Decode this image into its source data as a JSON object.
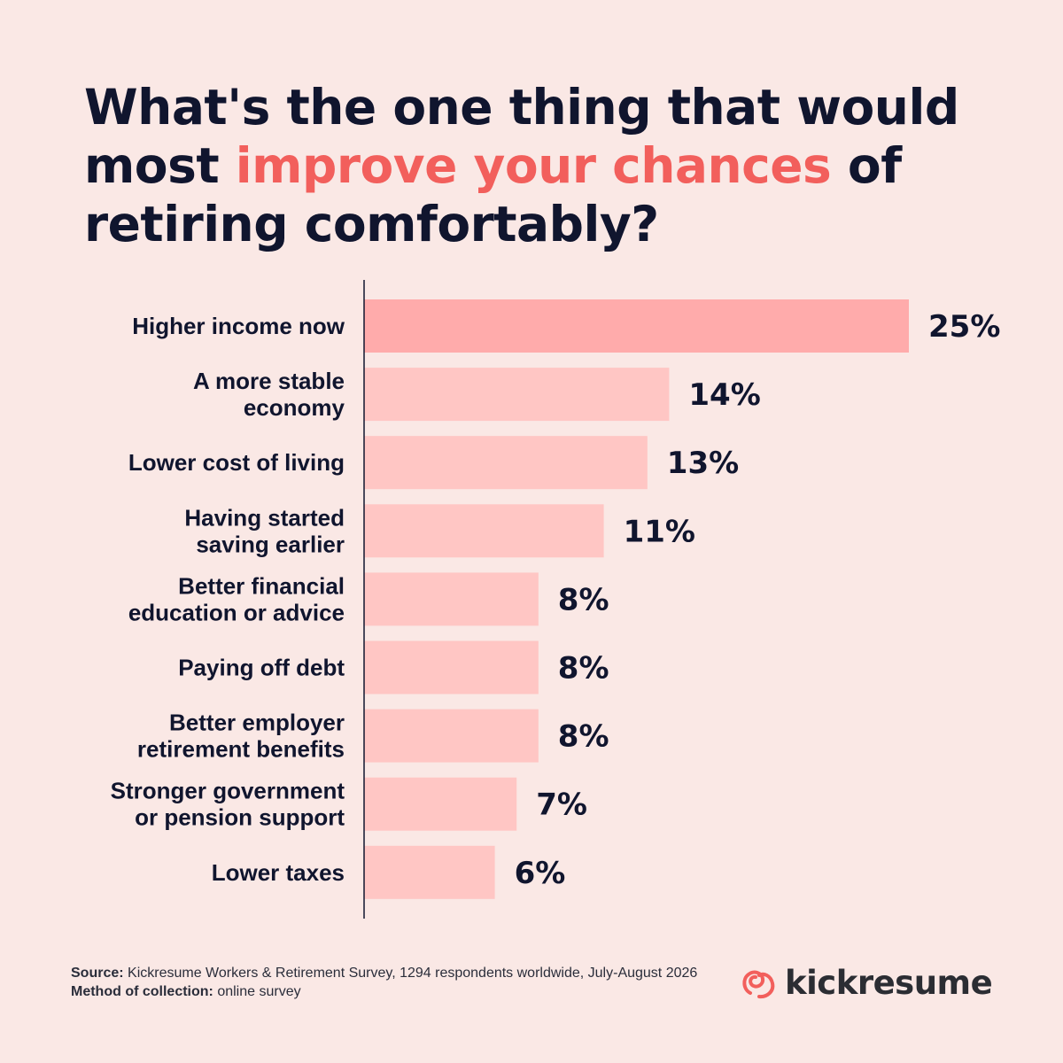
{
  "title": {
    "before": "What's the one thing that would most ",
    "highlight": "improve your chances",
    "after": " of retiring comfortably?"
  },
  "chart_data": {
    "type": "bar",
    "orientation": "horizontal",
    "categories": [
      [
        "Higher income now"
      ],
      [
        "A more stable",
        "economy"
      ],
      [
        "Lower cost of living"
      ],
      [
        "Having started",
        "saving earlier"
      ],
      [
        "Better financial",
        "education or advice"
      ],
      [
        "Paying off debt"
      ],
      [
        "Better employer",
        "retirement benefits"
      ],
      [
        "Stronger government",
        "or pension support"
      ],
      [
        "Lower taxes"
      ]
    ],
    "values": [
      25,
      14,
      13,
      11,
      8,
      8,
      8,
      7,
      6
    ],
    "value_labels": [
      "25%",
      "14%",
      "13%",
      "11%",
      "8%",
      "8%",
      "8%",
      "7%",
      "6%"
    ],
    "unit": "%",
    "xlim": [
      0,
      25
    ],
    "grid": false,
    "colors": {
      "highlight_bar": "#ffabab",
      "bar": "#ffc6c4",
      "axis": "#10152e"
    }
  },
  "footer": {
    "source_label": "Source:",
    "source_text": "Kickresume Workers & Retirement Survey, 1294 respondents worldwide, July-August 2026",
    "method_label": "Method of collection:",
    "method_text": "online survey"
  },
  "brand": {
    "name": "kickresume",
    "logo_icon": "kickresume-logo-icon",
    "logo_color": "#f25f5c"
  }
}
